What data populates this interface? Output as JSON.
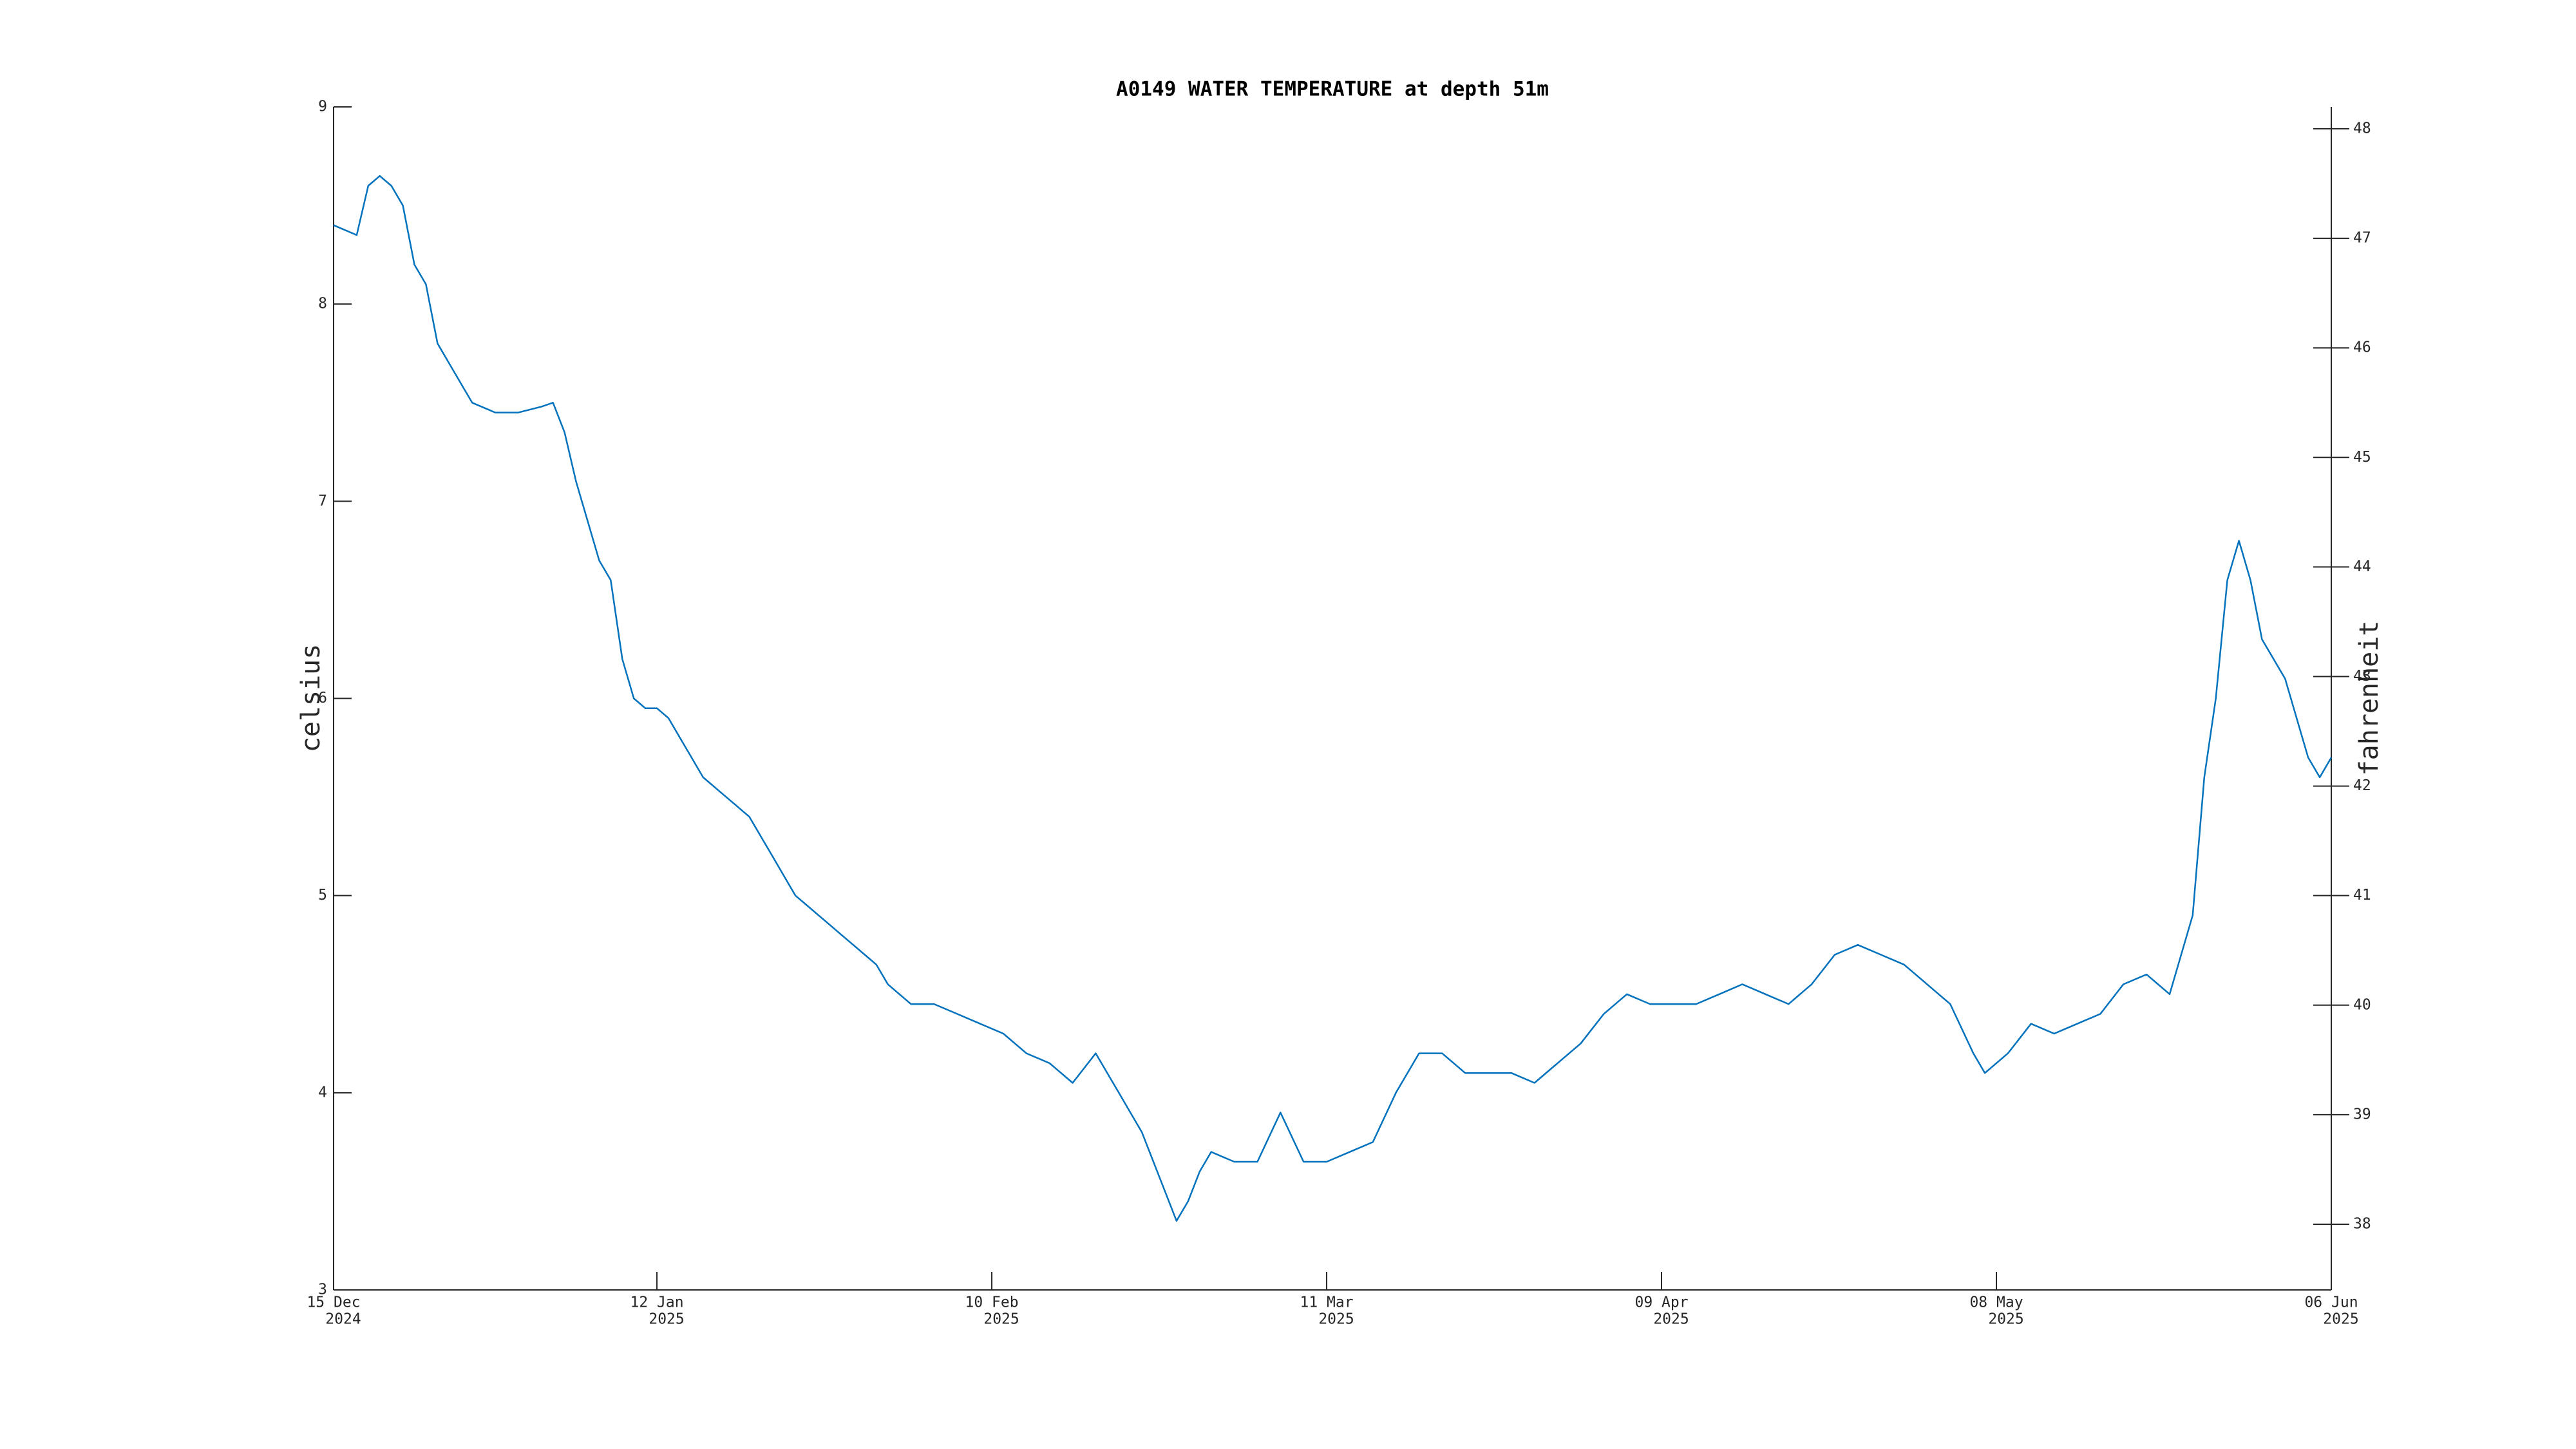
{
  "chart_data": {
    "type": "line",
    "title": "A0149 WATER TEMPERATURE at depth 51m",
    "ylabel": "celsius",
    "y2label": "fahrenheit",
    "color": "#0072bd",
    "x": [
      "2024-12-15",
      "2024-12-17",
      "2024-12-18",
      "2024-12-19",
      "2024-12-20",
      "2024-12-21",
      "2024-12-22",
      "2024-12-23",
      "2024-12-24",
      "2024-12-25",
      "2024-12-26",
      "2024-12-27",
      "2024-12-29",
      "2024-12-31",
      "2025-01-02",
      "2025-01-03",
      "2025-01-04",
      "2025-01-05",
      "2025-01-06",
      "2025-01-07",
      "2025-01-08",
      "2025-01-09",
      "2025-01-10",
      "2025-01-11",
      "2025-01-12",
      "2025-01-13",
      "2025-01-14",
      "2025-01-15",
      "2025-01-16",
      "2025-01-17",
      "2025-01-18",
      "2025-01-19",
      "2025-01-20",
      "2025-01-21",
      "2025-01-22",
      "2025-01-23",
      "2025-01-24",
      "2025-01-25",
      "2025-01-26",
      "2025-01-27",
      "2025-01-28",
      "2025-01-29",
      "2025-01-30",
      "2025-01-31",
      "2025-02-01",
      "2025-02-02",
      "2025-02-03",
      "2025-02-05",
      "2025-02-07",
      "2025-02-09",
      "2025-02-11",
      "2025-02-13",
      "2025-02-15",
      "2025-02-17",
      "2025-02-19",
      "2025-02-21",
      "2025-02-23",
      "2025-02-25",
      "2025-02-26",
      "2025-02-27",
      "2025-02-28",
      "2025-03-01",
      "2025-03-03",
      "2025-03-05",
      "2025-03-07",
      "2025-03-09",
      "2025-03-11",
      "2025-03-13",
      "2025-03-15",
      "2025-03-17",
      "2025-03-19",
      "2025-03-21",
      "2025-03-23",
      "2025-03-25",
      "2025-03-27",
      "2025-03-29",
      "2025-03-31",
      "2025-04-02",
      "2025-04-04",
      "2025-04-06",
      "2025-04-08",
      "2025-04-10",
      "2025-04-12",
      "2025-04-14",
      "2025-04-16",
      "2025-04-18",
      "2025-04-20",
      "2025-04-22",
      "2025-04-24",
      "2025-04-26",
      "2025-04-28",
      "2025-04-30",
      "2025-05-02",
      "2025-05-04",
      "2025-05-06",
      "2025-05-07",
      "2025-05-09",
      "2025-05-11",
      "2025-05-13",
      "2025-05-15",
      "2025-05-17",
      "2025-05-19",
      "2025-05-21",
      "2025-05-23",
      "2025-05-25",
      "2025-05-26",
      "2025-05-27",
      "2025-05-28",
      "2025-05-29",
      "2025-05-30",
      "2025-05-31",
      "2025-06-02",
      "2025-06-03",
      "2025-06-04",
      "2025-06-05",
      "2025-06-06"
    ],
    "values": [
      8.4,
      8.35,
      8.6,
      8.65,
      8.6,
      8.5,
      8.2,
      8.1,
      7.8,
      7.7,
      7.6,
      7.5,
      7.45,
      7.45,
      7.48,
      7.5,
      7.35,
      7.1,
      6.9,
      6.7,
      6.6,
      6.2,
      6.0,
      5.95,
      5.95,
      5.9,
      5.8,
      5.7,
      5.6,
      5.55,
      5.5,
      5.45,
      5.4,
      5.3,
      5.2,
      5.1,
      5.0,
      4.95,
      4.9,
      4.85,
      4.8,
      4.75,
      4.7,
      4.65,
      4.55,
      4.5,
      4.45,
      4.45,
      4.4,
      4.35,
      4.3,
      4.2,
      4.15,
      4.05,
      4.2,
      4.0,
      3.8,
      3.5,
      3.35,
      3.45,
      3.6,
      3.7,
      3.65,
      3.65,
      3.9,
      3.65,
      3.65,
      3.7,
      3.75,
      4.0,
      4.2,
      4.2,
      4.1,
      4.1,
      4.1,
      4.05,
      4.15,
      4.25,
      4.4,
      4.5,
      4.45,
      4.45,
      4.45,
      4.5,
      4.55,
      4.5,
      4.45,
      4.55,
      4.7,
      4.75,
      4.7,
      4.65,
      4.55,
      4.45,
      4.2,
      4.1,
      4.2,
      4.35,
      4.3,
      4.35,
      4.4,
      4.55,
      4.6,
      4.5,
      4.9,
      5.6,
      6.0,
      6.6,
      6.8,
      6.6,
      6.3,
      6.1,
      5.9,
      5.7,
      5.6,
      5.7
    ],
    "xlim": [
      "2024-12-15",
      "2025-06-06"
    ],
    "xticks": [
      {
        "value": "2024-12-15",
        "label": [
          "15 Dec",
          "2024"
        ]
      },
      {
        "value": "2025-01-12",
        "label": [
          "12 Jan",
          "2025"
        ]
      },
      {
        "value": "2025-02-10",
        "label": [
          "10 Feb",
          "2025"
        ]
      },
      {
        "value": "2025-03-11",
        "label": [
          "11 Mar",
          "2025"
        ]
      },
      {
        "value": "2025-04-09",
        "label": [
          "09 Apr",
          "2025"
        ]
      },
      {
        "value": "2025-05-08",
        "label": [
          "08 May",
          "2025"
        ]
      },
      {
        "value": "2025-06-06",
        "label": [
          "06 Jun",
          "2025"
        ]
      }
    ],
    "ylim": [
      3,
      9
    ],
    "yticks": [
      3,
      4,
      5,
      6,
      7,
      8,
      9
    ],
    "y2lim": [
      37.4,
      48.2
    ],
    "y2ticks": [
      38,
      39,
      40,
      41,
      42,
      43,
      44,
      45,
      46,
      47,
      48
    ]
  }
}
